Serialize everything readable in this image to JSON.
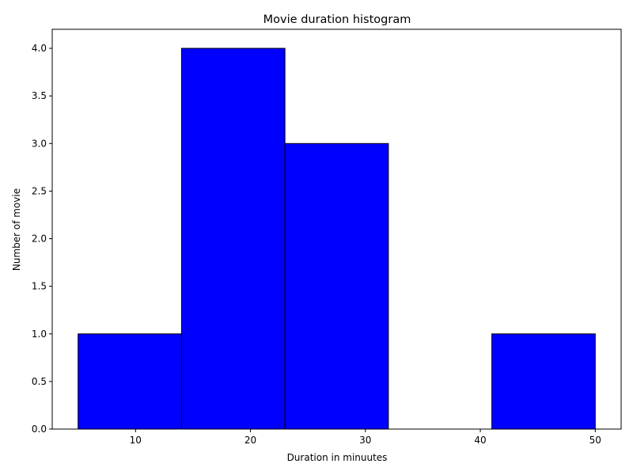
{
  "chart_data": {
    "type": "bar",
    "title": "Movie duration histogram",
    "xlabel": "Duration in minuutes",
    "ylabel": "Number of movie",
    "bins": [
      {
        "start": 5,
        "end": 14,
        "count": 1
      },
      {
        "start": 14,
        "end": 23,
        "count": 4
      },
      {
        "start": 23,
        "end": 32,
        "count": 3
      },
      {
        "start": 32,
        "end": 41,
        "count": 0
      },
      {
        "start": 41,
        "end": 50,
        "count": 1
      }
    ],
    "xlim": [
      2.75,
      52.25
    ],
    "ylim": [
      0,
      4.2
    ],
    "xticks": [
      10,
      20,
      30,
      40,
      50
    ],
    "yticks": [
      "0.0",
      "0.5",
      "1.0",
      "1.5",
      "2.0",
      "2.5",
      "3.0",
      "3.5",
      "4.0"
    ],
    "bar_color": "#0000ff",
    "edge_color": "#000000",
    "grid": false
  }
}
